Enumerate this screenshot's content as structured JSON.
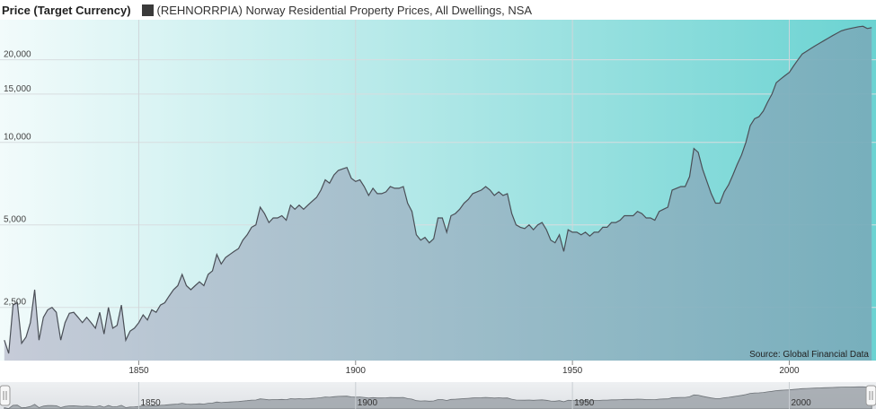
{
  "chart_data": {
    "type": "area",
    "ylabel": "Price (Target Currency)",
    "legend": "top-left",
    "series": [
      {
        "name": "(REHNORRPIA) Norway Residential Property Prices, All Dwellings, NSA",
        "color": "#3a3a3a",
        "points": [
          [
            1819,
            1900
          ],
          [
            1820,
            1700
          ],
          [
            1821,
            2550
          ],
          [
            1822,
            2600
          ],
          [
            1823,
            1850
          ],
          [
            1824,
            1950
          ],
          [
            1825,
            2200
          ],
          [
            1826,
            2900
          ],
          [
            1827,
            1900
          ],
          [
            1828,
            2300
          ],
          [
            1829,
            2450
          ],
          [
            1830,
            2500
          ],
          [
            1831,
            2400
          ],
          [
            1832,
            1900
          ],
          [
            1833,
            2200
          ],
          [
            1834,
            2380
          ],
          [
            1835,
            2400
          ],
          [
            1836,
            2300
          ],
          [
            1837,
            2200
          ],
          [
            1838,
            2300
          ],
          [
            1839,
            2200
          ],
          [
            1840,
            2100
          ],
          [
            1841,
            2400
          ],
          [
            1842,
            2000
          ],
          [
            1843,
            2500
          ],
          [
            1844,
            2100
          ],
          [
            1845,
            2150
          ],
          [
            1846,
            2550
          ],
          [
            1847,
            1900
          ],
          [
            1848,
            2050
          ],
          [
            1849,
            2100
          ],
          [
            1850,
            2200
          ],
          [
            1851,
            2350
          ],
          [
            1852,
            2250
          ],
          [
            1853,
            2450
          ],
          [
            1854,
            2400
          ],
          [
            1855,
            2550
          ],
          [
            1856,
            2600
          ],
          [
            1857,
            2750
          ],
          [
            1858,
            2900
          ],
          [
            1859,
            3000
          ],
          [
            1860,
            3300
          ],
          [
            1861,
            3000
          ],
          [
            1862,
            2900
          ],
          [
            1863,
            3000
          ],
          [
            1864,
            3100
          ],
          [
            1865,
            3000
          ],
          [
            1866,
            3300
          ],
          [
            1867,
            3400
          ],
          [
            1868,
            3900
          ],
          [
            1869,
            3600
          ],
          [
            1870,
            3800
          ],
          [
            1871,
            3900
          ],
          [
            1872,
            4000
          ],
          [
            1873,
            4100
          ],
          [
            1874,
            4400
          ],
          [
            1875,
            4600
          ],
          [
            1876,
            4900
          ],
          [
            1877,
            5000
          ],
          [
            1878,
            5800
          ],
          [
            1879,
            5500
          ],
          [
            1880,
            5100
          ],
          [
            1881,
            5300
          ],
          [
            1882,
            5300
          ],
          [
            1883,
            5400
          ],
          [
            1884,
            5200
          ],
          [
            1885,
            5900
          ],
          [
            1886,
            5700
          ],
          [
            1887,
            5900
          ],
          [
            1888,
            5700
          ],
          [
            1889,
            5900
          ],
          [
            1890,
            6100
          ],
          [
            1891,
            6300
          ],
          [
            1892,
            6700
          ],
          [
            1893,
            7300
          ],
          [
            1894,
            7100
          ],
          [
            1895,
            7600
          ],
          [
            1896,
            7900
          ],
          [
            1897,
            8000
          ],
          [
            1898,
            8100
          ],
          [
            1899,
            7400
          ],
          [
            1900,
            7200
          ],
          [
            1901,
            7300
          ],
          [
            1902,
            6900
          ],
          [
            1903,
            6400
          ],
          [
            1904,
            6800
          ],
          [
            1905,
            6500
          ],
          [
            1906,
            6500
          ],
          [
            1907,
            6600
          ],
          [
            1908,
            6900
          ],
          [
            1909,
            6800
          ],
          [
            1910,
            6800
          ],
          [
            1911,
            6900
          ],
          [
            1912,
            6000
          ],
          [
            1913,
            5600
          ],
          [
            1914,
            4600
          ],
          [
            1915,
            4400
          ],
          [
            1916,
            4500
          ],
          [
            1917,
            4300
          ],
          [
            1918,
            4450
          ],
          [
            1919,
            5300
          ],
          [
            1920,
            5300
          ],
          [
            1921,
            4700
          ],
          [
            1922,
            5400
          ],
          [
            1923,
            5500
          ],
          [
            1924,
            5700
          ],
          [
            1925,
            6000
          ],
          [
            1926,
            6200
          ],
          [
            1927,
            6500
          ],
          [
            1928,
            6600
          ],
          [
            1929,
            6700
          ],
          [
            1930,
            6900
          ],
          [
            1931,
            6700
          ],
          [
            1932,
            6400
          ],
          [
            1933,
            6600
          ],
          [
            1934,
            6400
          ],
          [
            1935,
            6500
          ],
          [
            1936,
            5500
          ],
          [
            1937,
            5000
          ],
          [
            1938,
            4900
          ],
          [
            1939,
            4850
          ],
          [
            1940,
            5000
          ],
          [
            1941,
            4800
          ],
          [
            1942,
            5000
          ],
          [
            1943,
            5100
          ],
          [
            1944,
            4800
          ],
          [
            1945,
            4400
          ],
          [
            1946,
            4300
          ],
          [
            1947,
            4600
          ],
          [
            1948,
            4000
          ],
          [
            1949,
            4800
          ],
          [
            1950,
            4700
          ],
          [
            1951,
            4700
          ],
          [
            1952,
            4600
          ],
          [
            1953,
            4700
          ],
          [
            1954,
            4550
          ],
          [
            1955,
            4700
          ],
          [
            1956,
            4700
          ],
          [
            1957,
            4900
          ],
          [
            1958,
            4900
          ],
          [
            1959,
            5100
          ],
          [
            1960,
            5100
          ],
          [
            1961,
            5200
          ],
          [
            1962,
            5400
          ],
          [
            1963,
            5400
          ],
          [
            1964,
            5400
          ],
          [
            1965,
            5600
          ],
          [
            1966,
            5500
          ],
          [
            1967,
            5300
          ],
          [
            1968,
            5300
          ],
          [
            1969,
            5200
          ],
          [
            1970,
            5600
          ],
          [
            1971,
            5700
          ],
          [
            1972,
            5800
          ],
          [
            1973,
            6700
          ],
          [
            1974,
            6800
          ],
          [
            1975,
            6900
          ],
          [
            1976,
            6900
          ],
          [
            1977,
            7500
          ],
          [
            1978,
            9500
          ],
          [
            1979,
            9200
          ],
          [
            1980,
            8000
          ],
          [
            1981,
            7200
          ],
          [
            1982,
            6500
          ],
          [
            1983,
            6000
          ],
          [
            1984,
            6000
          ],
          [
            1985,
            6600
          ],
          [
            1986,
            7000
          ],
          [
            1987,
            7600
          ],
          [
            1988,
            8300
          ],
          [
            1989,
            9000
          ],
          [
            1990,
            10000
          ],
          [
            1991,
            11500
          ],
          [
            1992,
            12200
          ],
          [
            1993,
            12400
          ],
          [
            1994,
            13000
          ],
          [
            1995,
            14000
          ],
          [
            1996,
            15000
          ],
          [
            1997,
            16500
          ],
          [
            1998,
            17000
          ],
          [
            1999,
            17500
          ],
          [
            2000,
            18000
          ],
          [
            2001,
            19000
          ],
          [
            2002,
            20000
          ],
          [
            2003,
            21000
          ],
          [
            2004,
            21500
          ],
          [
            2005,
            22000
          ],
          [
            2006,
            22500
          ],
          [
            2007,
            23000
          ],
          [
            2008,
            23500
          ],
          [
            2009,
            24000
          ],
          [
            2010,
            24500
          ],
          [
            2011,
            25000
          ],
          [
            2012,
            25500
          ],
          [
            2013,
            25800
          ],
          [
            2014,
            26000
          ],
          [
            2015,
            26200
          ],
          [
            2016,
            26400
          ],
          [
            2017,
            26500
          ],
          [
            2018,
            26000
          ],
          [
            2019,
            26200
          ]
        ]
      }
    ],
    "yticks": [
      "2,500",
      "5,000",
      "10,000",
      "15,000",
      "20,000"
    ],
    "xticks": [
      "1850",
      "1900",
      "1950",
      "2000"
    ],
    "y_scale": "log",
    "ylim": [
      1600,
      28000
    ],
    "xlim": [
      1818,
      2020
    ],
    "grid": true,
    "source": "Source: Global Financial Data"
  },
  "navigator": {
    "labels": [
      "1850",
      "1900",
      "1950",
      "2000"
    ]
  },
  "colors": {
    "bg_left": "#f2fbfb",
    "bg_right": "#6bd3d2",
    "fill_left": "#c4c9d6",
    "fill_right": "#78adbb",
    "line": "#4a4f57"
  }
}
